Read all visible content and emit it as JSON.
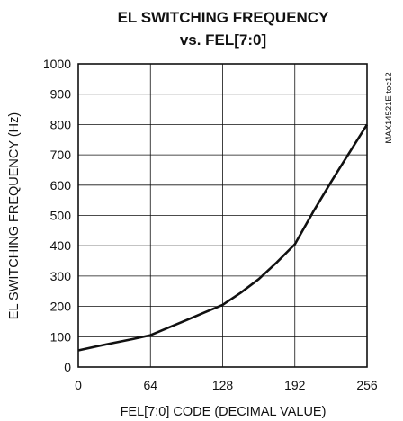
{
  "chart_data": {
    "type": "line",
    "title_lines": [
      "EL SWITCHING FREQUENCY",
      "vs. FEL[7:0]"
    ],
    "xlabel": "FEL[7:0] CODE (DECIMAL VALUE)",
    "ylabel": "EL SWITCHING FREQUENCY (Hz)",
    "xlim": [
      0,
      256
    ],
    "ylim": [
      0,
      1000
    ],
    "xticks": [
      "0",
      "64",
      "128",
      "192",
      "256"
    ],
    "yticks": [
      "0",
      "100",
      "200",
      "300",
      "400",
      "500",
      "600",
      "700",
      "800",
      "900",
      "1000"
    ],
    "grid": true,
    "side_label": "MAX14521E toc12",
    "series": [
      {
        "x": [
          0,
          16,
          32,
          48,
          64,
          80,
          96,
          112,
          128,
          144,
          160,
          176,
          192,
          208,
          224,
          240,
          256
        ],
        "y": [
          55,
          68,
          80,
          92,
          105,
          130,
          155,
          180,
          205,
          245,
          290,
          345,
          405,
          510,
          610,
          705,
          800
        ]
      }
    ]
  }
}
